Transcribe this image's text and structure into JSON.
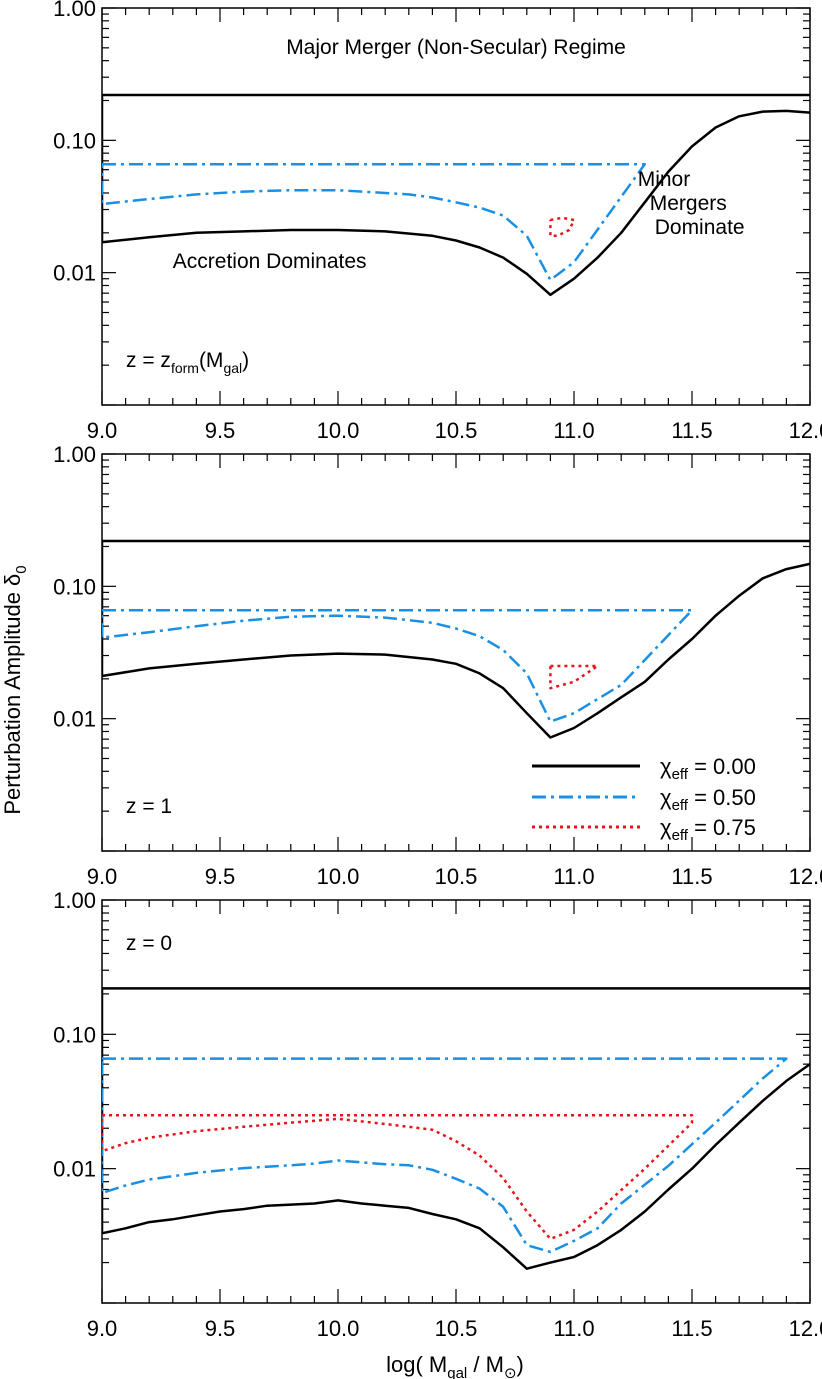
{
  "figure": {
    "y_axis_title": {
      "main": "Perturbation Amplitude δ",
      "sub": "0"
    },
    "x_axis_title": {
      "pre": "log( M",
      "sub1": "gal",
      "mid": " / M",
      "sub2": "⊙",
      "post": ")"
    }
  },
  "legend": [
    {
      "pre": "χ",
      "sub": "eff",
      "post": " = 0.00",
      "color": "#000000",
      "style": "solid"
    },
    {
      "pre": "χ",
      "sub": "eff",
      "post": " = 0.50",
      "color": "#1a8fe3",
      "style": "dashdot"
    },
    {
      "pre": "χ",
      "sub": "eff",
      "post": " = 0.75",
      "color": "#e8141a",
      "style": "dotted"
    }
  ],
  "chart_data": [
    {
      "type": "line",
      "panel_label": {
        "main": "z = z",
        "sub": "form",
        "post": "(M",
        "sub2": "gal",
        "end": ")"
      },
      "xlim": [
        9.0,
        12.0
      ],
      "ylim": [
        0.001,
        1.0
      ],
      "yscale": "log",
      "x_ticks": [
        "9.0",
        "9.5",
        "10.0",
        "10.5",
        "11.0",
        "11.5",
        "12.0"
      ],
      "y_ticks": [
        "0.01",
        "0.10",
        "1.00"
      ],
      "annotations": [
        {
          "text": "Major Merger (Non-Secular) Regime",
          "x": 10.5,
          "y": 0.45
        },
        {
          "text": "Accretion Dominates",
          "x": 9.3,
          "y": 0.0108
        },
        {
          "lines": [
            "Minor",
            "Mergers",
            "Dominate"
          ],
          "x": 11.27,
          "y": 0.045
        }
      ],
      "series": [
        {
          "name": "χeff = 0.00",
          "color": "#000000",
          "style": "solid",
          "points": [
            [
              9.0,
              0.22
            ],
            [
              9.0,
              0.017
            ],
            [
              9.2,
              0.0185
            ],
            [
              9.4,
              0.02
            ],
            [
              9.6,
              0.0205
            ],
            [
              9.8,
              0.021
            ],
            [
              10.0,
              0.021
            ],
            [
              10.2,
              0.0205
            ],
            [
              10.4,
              0.019
            ],
            [
              10.5,
              0.0175
            ],
            [
              10.6,
              0.0155
            ],
            [
              10.7,
              0.013
            ],
            [
              10.8,
              0.0098
            ],
            [
              10.9,
              0.0068
            ],
            [
              11.0,
              0.009
            ],
            [
              11.1,
              0.013
            ],
            [
              11.2,
              0.02
            ],
            [
              11.3,
              0.034
            ],
            [
              11.4,
              0.058
            ],
            [
              11.5,
              0.09
            ],
            [
              11.6,
              0.125
            ],
            [
              11.7,
              0.152
            ],
            [
              11.8,
              0.165
            ],
            [
              11.9,
              0.167
            ],
            [
              12.0,
              0.162
            ]
          ]
        },
        {
          "name": "χeff = 0.50",
          "color": "#1a8fe3",
          "style": "dashdot",
          "points": [
            [
              9.0,
              0.066
            ],
            [
              11.3,
              0.066
            ],
            [
              11.0,
              0.012
            ],
            [
              10.9,
              0.0088
            ],
            [
              10.8,
              0.019
            ],
            [
              10.7,
              0.027
            ],
            [
              10.6,
              0.031
            ],
            [
              10.5,
              0.034
            ],
            [
              10.4,
              0.037
            ],
            [
              10.3,
              0.039
            ],
            [
              10.2,
              0.04
            ],
            [
              10.0,
              0.042
            ],
            [
              9.8,
              0.042
            ],
            [
              9.6,
              0.041
            ],
            [
              9.4,
              0.039
            ],
            [
              9.2,
              0.036
            ],
            [
              9.0,
              0.033
            ],
            [
              9.0,
              0.066
            ]
          ]
        },
        {
          "name": "χeff = 0.75",
          "color": "#e8141a",
          "style": "dotted",
          "points": [
            [
              10.9,
              0.025
            ],
            [
              10.95,
              0.026
            ],
            [
              11.0,
              0.025
            ],
            [
              10.98,
              0.021
            ],
            [
              10.93,
              0.019
            ],
            [
              10.9,
              0.019
            ],
            [
              10.9,
              0.025
            ]
          ]
        }
      ],
      "reference_line": {
        "y": 0.22,
        "color": "#000000"
      }
    },
    {
      "type": "line",
      "panel_label": {
        "main": "z = 1"
      },
      "xlim": [
        9.0,
        12.0
      ],
      "ylim": [
        0.001,
        1.0
      ],
      "yscale": "log",
      "x_ticks": [
        "9.0",
        "9.5",
        "10.0",
        "10.5",
        "11.0",
        "11.5",
        "12.0"
      ],
      "y_ticks": [
        "0.01",
        "0.10",
        "1.00"
      ],
      "series": [
        {
          "name": "χeff = 0.00",
          "color": "#000000",
          "style": "solid",
          "points": [
            [
              9.0,
              0.22
            ],
            [
              9.0,
              0.021
            ],
            [
              9.2,
              0.024
            ],
            [
              9.4,
              0.026
            ],
            [
              9.6,
              0.028
            ],
            [
              9.8,
              0.03
            ],
            [
              10.0,
              0.031
            ],
            [
              10.2,
              0.0305
            ],
            [
              10.4,
              0.028
            ],
            [
              10.5,
              0.026
            ],
            [
              10.6,
              0.022
            ],
            [
              10.7,
              0.017
            ],
            [
              10.8,
              0.011
            ],
            [
              10.9,
              0.0072
            ],
            [
              11.0,
              0.0085
            ],
            [
              11.1,
              0.011
            ],
            [
              11.2,
              0.0145
            ],
            [
              11.3,
              0.019
            ],
            [
              11.4,
              0.028
            ],
            [
              11.5,
              0.04
            ],
            [
              11.6,
              0.06
            ],
            [
              11.7,
              0.085
            ],
            [
              11.8,
              0.115
            ],
            [
              11.9,
              0.135
            ],
            [
              12.0,
              0.148
            ]
          ]
        },
        {
          "name": "χeff = 0.50",
          "color": "#1a8fe3",
          "style": "dashdot",
          "points": [
            [
              9.0,
              0.066
            ],
            [
              11.5,
              0.066
            ],
            [
              11.2,
              0.018
            ],
            [
              11.0,
              0.011
            ],
            [
              10.9,
              0.0095
            ],
            [
              10.8,
              0.022
            ],
            [
              10.7,
              0.033
            ],
            [
              10.6,
              0.042
            ],
            [
              10.5,
              0.048
            ],
            [
              10.4,
              0.053
            ],
            [
              10.2,
              0.058
            ],
            [
              10.0,
              0.06
            ],
            [
              9.8,
              0.059
            ],
            [
              9.6,
              0.055
            ],
            [
              9.4,
              0.05
            ],
            [
              9.2,
              0.045
            ],
            [
              9.0,
              0.041
            ],
            [
              9.0,
              0.066
            ]
          ]
        },
        {
          "name": "χeff = 0.75",
          "color": "#e8141a",
          "style": "dotted",
          "points": [
            [
              10.9,
              0.025
            ],
            [
              11.0,
              0.025
            ],
            [
              11.1,
              0.025
            ],
            [
              11.0,
              0.019
            ],
            [
              10.9,
              0.017
            ],
            [
              10.9,
              0.025
            ]
          ]
        }
      ],
      "reference_line": {
        "y": 0.22,
        "color": "#000000"
      }
    },
    {
      "type": "line",
      "panel_label": {
        "main": "z = 0"
      },
      "xlim": [
        9.0,
        12.0
      ],
      "ylim": [
        0.001,
        1.0
      ],
      "yscale": "log",
      "x_ticks": [
        "9.0",
        "9.5",
        "10.0",
        "10.5",
        "11.0",
        "11.5",
        "12.0"
      ],
      "y_ticks": [
        "0.01",
        "0.10",
        "1.00"
      ],
      "series": [
        {
          "name": "χeff = 0.00",
          "color": "#000000",
          "style": "solid",
          "points": [
            [
              9.0,
              0.22
            ],
            [
              9.0,
              0.0033
            ],
            [
              9.1,
              0.0036
            ],
            [
              9.2,
              0.004
            ],
            [
              9.3,
              0.0042
            ],
            [
              9.4,
              0.0045
            ],
            [
              9.5,
              0.0048
            ],
            [
              9.6,
              0.005
            ],
            [
              9.7,
              0.0053
            ],
            [
              9.8,
              0.0054
            ],
            [
              9.9,
              0.0055
            ],
            [
              10.0,
              0.0058
            ],
            [
              10.1,
              0.0055
            ],
            [
              10.2,
              0.0053
            ],
            [
              10.3,
              0.0051
            ],
            [
              10.4,
              0.0046
            ],
            [
              10.5,
              0.0042
            ],
            [
              10.6,
              0.0036
            ],
            [
              10.7,
              0.0026
            ],
            [
              10.8,
              0.0018
            ],
            [
              10.9,
              0.002
            ],
            [
              11.0,
              0.0022
            ],
            [
              11.1,
              0.0027
            ],
            [
              11.2,
              0.0035
            ],
            [
              11.3,
              0.0048
            ],
            [
              11.4,
              0.007
            ],
            [
              11.5,
              0.01
            ],
            [
              11.6,
              0.015
            ],
            [
              11.7,
              0.022
            ],
            [
              11.8,
              0.032
            ],
            [
              11.9,
              0.045
            ],
            [
              12.0,
              0.06
            ]
          ]
        },
        {
          "name": "χeff = 0.50",
          "color": "#1a8fe3",
          "style": "dashdot",
          "points": [
            [
              9.0,
              0.066
            ],
            [
              11.9,
              0.066
            ],
            [
              11.8,
              0.047
            ],
            [
              11.6,
              0.022
            ],
            [
              11.4,
              0.0105
            ],
            [
              11.2,
              0.0055
            ],
            [
              11.1,
              0.0036
            ],
            [
              11.0,
              0.0029
            ],
            [
              10.9,
              0.0024
            ],
            [
              10.8,
              0.0027
            ],
            [
              10.7,
              0.0052
            ],
            [
              10.6,
              0.0071
            ],
            [
              10.5,
              0.0084
            ],
            [
              10.4,
              0.0098
            ],
            [
              10.3,
              0.0106
            ],
            [
              10.2,
              0.0108
            ],
            [
              10.0,
              0.0115
            ],
            [
              9.9,
              0.0109
            ],
            [
              9.8,
              0.0106
            ],
            [
              9.6,
              0.0101
            ],
            [
              9.4,
              0.0093
            ],
            [
              9.2,
              0.0083
            ],
            [
              9.1,
              0.0075
            ],
            [
              9.0,
              0.0066
            ],
            [
              9.0,
              0.066
            ]
          ]
        },
        {
          "name": "χeff = 0.75",
          "color": "#e8141a",
          "style": "dotted",
          "points": [
            [
              9.0,
              0.025
            ],
            [
              11.5,
              0.025
            ],
            [
              11.5,
              0.022
            ],
            [
              11.3,
              0.01
            ],
            [
              11.1,
              0.0048
            ],
            [
              11.0,
              0.0035
            ],
            [
              10.9,
              0.003
            ],
            [
              10.8,
              0.0048
            ],
            [
              10.7,
              0.0085
            ],
            [
              10.6,
              0.0125
            ],
            [
              10.5,
              0.016
            ],
            [
              10.4,
              0.0195
            ],
            [
              10.2,
              0.0215
            ],
            [
              10.0,
              0.0235
            ],
            [
              9.8,
              0.022
            ],
            [
              9.6,
              0.0205
            ],
            [
              9.4,
              0.019
            ],
            [
              9.2,
              0.017
            ],
            [
              9.1,
              0.0155
            ],
            [
              9.0,
              0.0135
            ],
            [
              9.0,
              0.025
            ]
          ]
        }
      ],
      "reference_line": {
        "y": 0.22,
        "color": "#000000"
      }
    }
  ]
}
